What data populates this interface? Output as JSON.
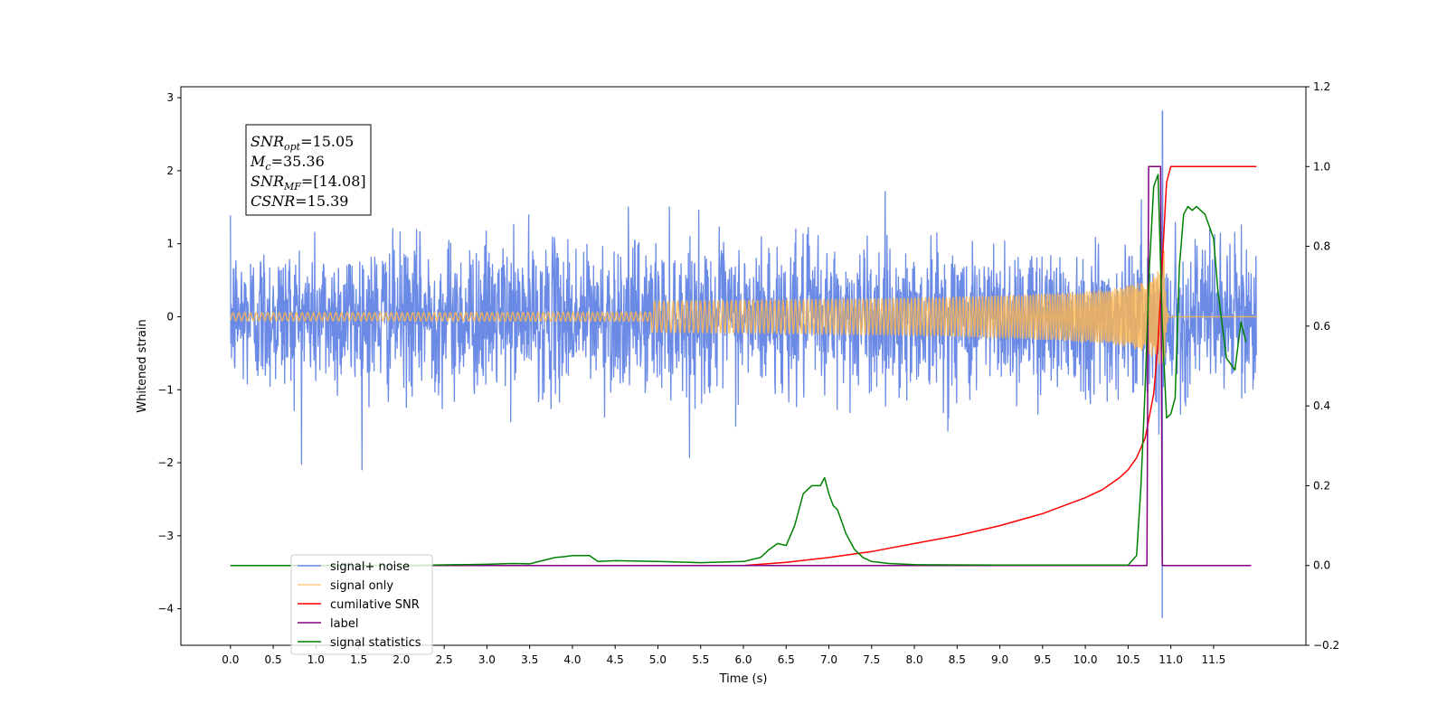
{
  "chart_data": {
    "type": "line",
    "title": "",
    "xlabel": "Time (s)",
    "ylabel_left": "Whitened strain",
    "ylabel_right": "",
    "xlim": [
      -0.58,
      12.58
    ],
    "ylim_left": [
      -4.5,
      3.15
    ],
    "ylim_right": [
      -0.2,
      1.2
    ],
    "x_ticks": [
      "0.0",
      "0.5",
      "1.0",
      "1.5",
      "2.0",
      "2.5",
      "3.0",
      "3.5",
      "4.0",
      "4.5",
      "5.0",
      "5.5",
      "6.0",
      "6.5",
      "7.0",
      "7.5",
      "8.0",
      "8.5",
      "9.0",
      "9.5",
      "10.0",
      "10.5",
      "11.0",
      "11.5"
    ],
    "y_left_ticks": [
      3,
      2,
      1,
      0,
      -1,
      -2,
      -3,
      -4
    ],
    "y_left_tick_labels": [
      "3",
      "2",
      "1",
      "0",
      "−1",
      "−2",
      "−3",
      "−4"
    ],
    "y_right_ticks": [
      1.2,
      1.0,
      0.8,
      0.6,
      0.4,
      0.2,
      0.0,
      -0.2
    ],
    "y_right_tick_labels": [
      "1.2",
      "1.0",
      "0.8",
      "0.6",
      "0.4",
      "0.2",
      "0.0",
      "−0.2"
    ],
    "grid": false,
    "legend_position": "bottom-left",
    "annotation": {
      "lines": [
        {
          "base": "SNR",
          "sub": "opt",
          "rest": "=15.05"
        },
        {
          "base": "M",
          "sub": "c",
          "rest": "=35.36"
        },
        {
          "base": "SNR",
          "sub": "MF",
          "rest": "=[14.08]"
        },
        {
          "base": "CSNR",
          "sub": "",
          "rest": "=15.39"
        }
      ]
    },
    "series": [
      {
        "name": "signal+ noise",
        "axis": "left",
        "color": "#6a8ae6",
        "kind": "noise",
        "x_range": [
          0.0,
          12.0
        ],
        "amplitude_std": 0.5,
        "peak": {
          "x": 10.9,
          "ymax": 2.82,
          "ymin": -4.12
        }
      },
      {
        "name": "signal only",
        "axis": "left",
        "color": "#ffb74d",
        "kind": "chirp",
        "x_range": [
          0.0,
          12.0
        ],
        "merger_time": 10.92,
        "peak_amplitude": 0.9
      },
      {
        "name": "cumilative SNR",
        "axis": "right",
        "color": "#ff0000",
        "x": [
          0.0,
          6.0,
          6.5,
          7.0,
          7.5,
          8.0,
          8.5,
          9.0,
          9.5,
          10.0,
          10.2,
          10.4,
          10.5,
          10.6,
          10.7,
          10.8,
          10.85,
          10.9,
          10.95,
          11.0,
          12.0
        ],
        "y": [
          0.0,
          0.0,
          0.008,
          0.02,
          0.035,
          0.055,
          0.075,
          0.1,
          0.13,
          0.17,
          0.19,
          0.22,
          0.24,
          0.27,
          0.32,
          0.43,
          0.56,
          0.76,
          0.96,
          1.0,
          1.0
        ]
      },
      {
        "name": "label",
        "axis": "right",
        "color": "#800080",
        "x": [
          0.0,
          10.72,
          10.74,
          10.88,
          10.9,
          11.94
        ],
        "y": [
          0.0,
          0.0,
          1.0,
          1.0,
          0.0,
          0.0
        ]
      },
      {
        "name": "signal statistics",
        "axis": "right",
        "color": "#008000",
        "x": [
          0.0,
          1.0,
          2.0,
          3.0,
          3.3,
          3.5,
          3.7,
          3.8,
          3.9,
          4.0,
          4.2,
          4.3,
          4.5,
          5.0,
          5.5,
          6.0,
          6.2,
          6.3,
          6.4,
          6.5,
          6.6,
          6.7,
          6.75,
          6.8,
          6.9,
          6.95,
          7.0,
          7.05,
          7.1,
          7.2,
          7.3,
          7.4,
          7.5,
          7.7,
          8.0,
          9.0,
          10.0,
          10.5,
          10.6,
          10.65,
          10.7,
          10.75,
          10.8,
          10.85,
          10.9,
          10.95,
          11.0,
          11.05,
          11.1,
          11.15,
          11.2,
          11.25,
          11.3,
          11.4,
          11.5,
          11.55,
          11.65,
          11.75,
          11.82,
          11.88
        ],
        "y": [
          0.0,
          0.0,
          0.0,
          0.003,
          0.005,
          0.004,
          0.015,
          0.02,
          0.022,
          0.025,
          0.025,
          0.01,
          0.012,
          0.01,
          0.007,
          0.01,
          0.02,
          0.04,
          0.055,
          0.05,
          0.1,
          0.18,
          0.19,
          0.2,
          0.2,
          0.22,
          0.18,
          0.15,
          0.14,
          0.08,
          0.04,
          0.02,
          0.01,
          0.005,
          0.002,
          0.001,
          0.001,
          0.001,
          0.025,
          0.2,
          0.45,
          0.75,
          0.95,
          0.98,
          0.6,
          0.37,
          0.38,
          0.42,
          0.75,
          0.88,
          0.9,
          0.89,
          0.9,
          0.88,
          0.82,
          0.69,
          0.52,
          0.49,
          0.61,
          0.56
        ]
      }
    ]
  }
}
